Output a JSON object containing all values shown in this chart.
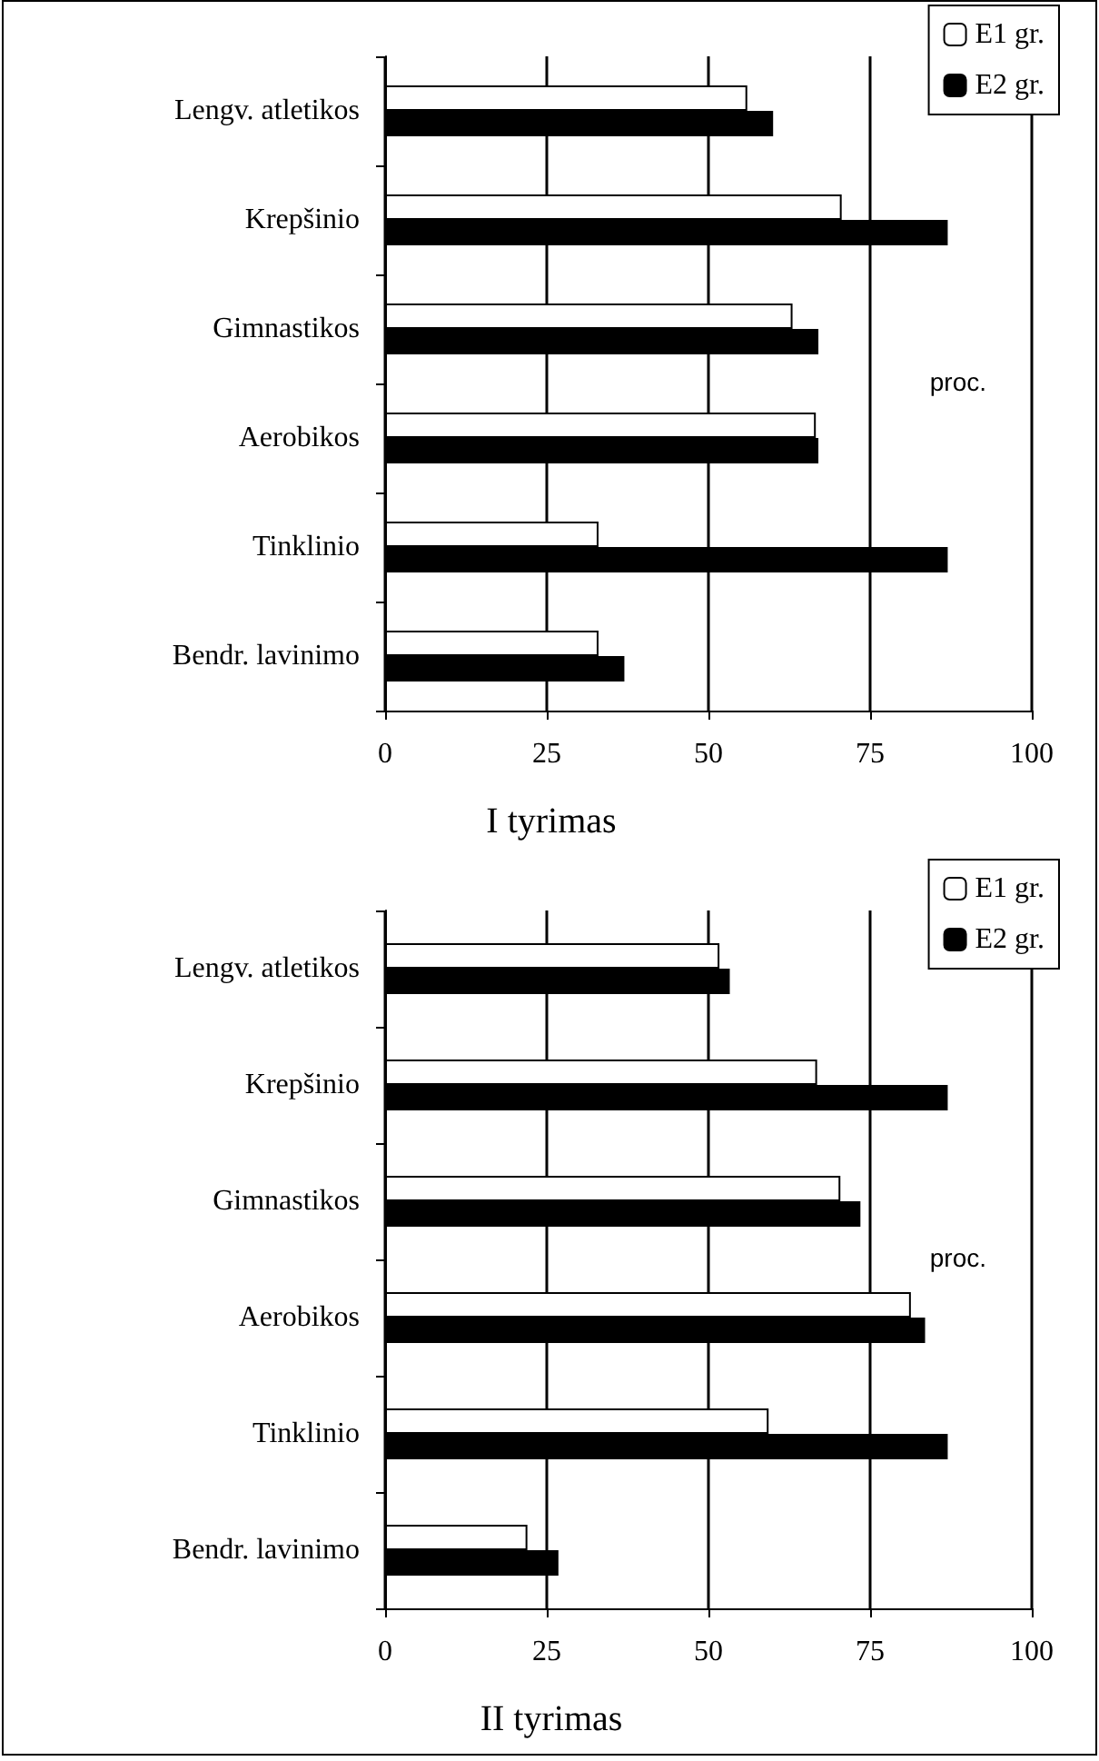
{
  "chart_data": [
    {
      "type": "bar",
      "orientation": "horizontal",
      "title": "I tyrimas",
      "xlabel": "proc.",
      "categories": [
        "Lengv. atletikos",
        "Krepšinio",
        "Gimnastikos",
        "Aerobikos",
        "Tinklinio",
        "Bendr. lavinimo"
      ],
      "series": [
        {
          "name": "E1 gr.",
          "color": "#ffffff",
          "values": [
            56,
            70.6,
            63,
            66.6,
            33,
            33
          ]
        },
        {
          "name": "E2 gr.",
          "color": "#000000",
          "values": [
            60,
            87,
            67,
            67,
            87,
            37
          ]
        }
      ],
      "xlim": [
        0,
        100
      ],
      "xticks": [
        0,
        25,
        50,
        75,
        100
      ],
      "grid": "x",
      "legend": "top right"
    },
    {
      "type": "bar",
      "orientation": "horizontal",
      "title": "II tyrimas",
      "xlabel": "proc.",
      "categories": [
        "Lengv. atletikos",
        "Krepšinio",
        "Gimnastikos",
        "Aerobikos",
        "Tinklinio",
        "Bendr. lavinimo"
      ],
      "series": [
        {
          "name": "E1 gr.",
          "color": "#ffffff",
          "values": [
            51.7,
            66.8,
            70.4,
            81.3,
            59.3,
            22
          ]
        },
        {
          "name": "E2 gr.",
          "color": "#000000",
          "values": [
            53.3,
            87,
            73.5,
            83.5,
            87,
            26.8
          ]
        }
      ],
      "xlim": [
        0,
        100
      ],
      "xticks": [
        0,
        25,
        50,
        75,
        100
      ],
      "grid": "x",
      "legend": "top right"
    }
  ]
}
